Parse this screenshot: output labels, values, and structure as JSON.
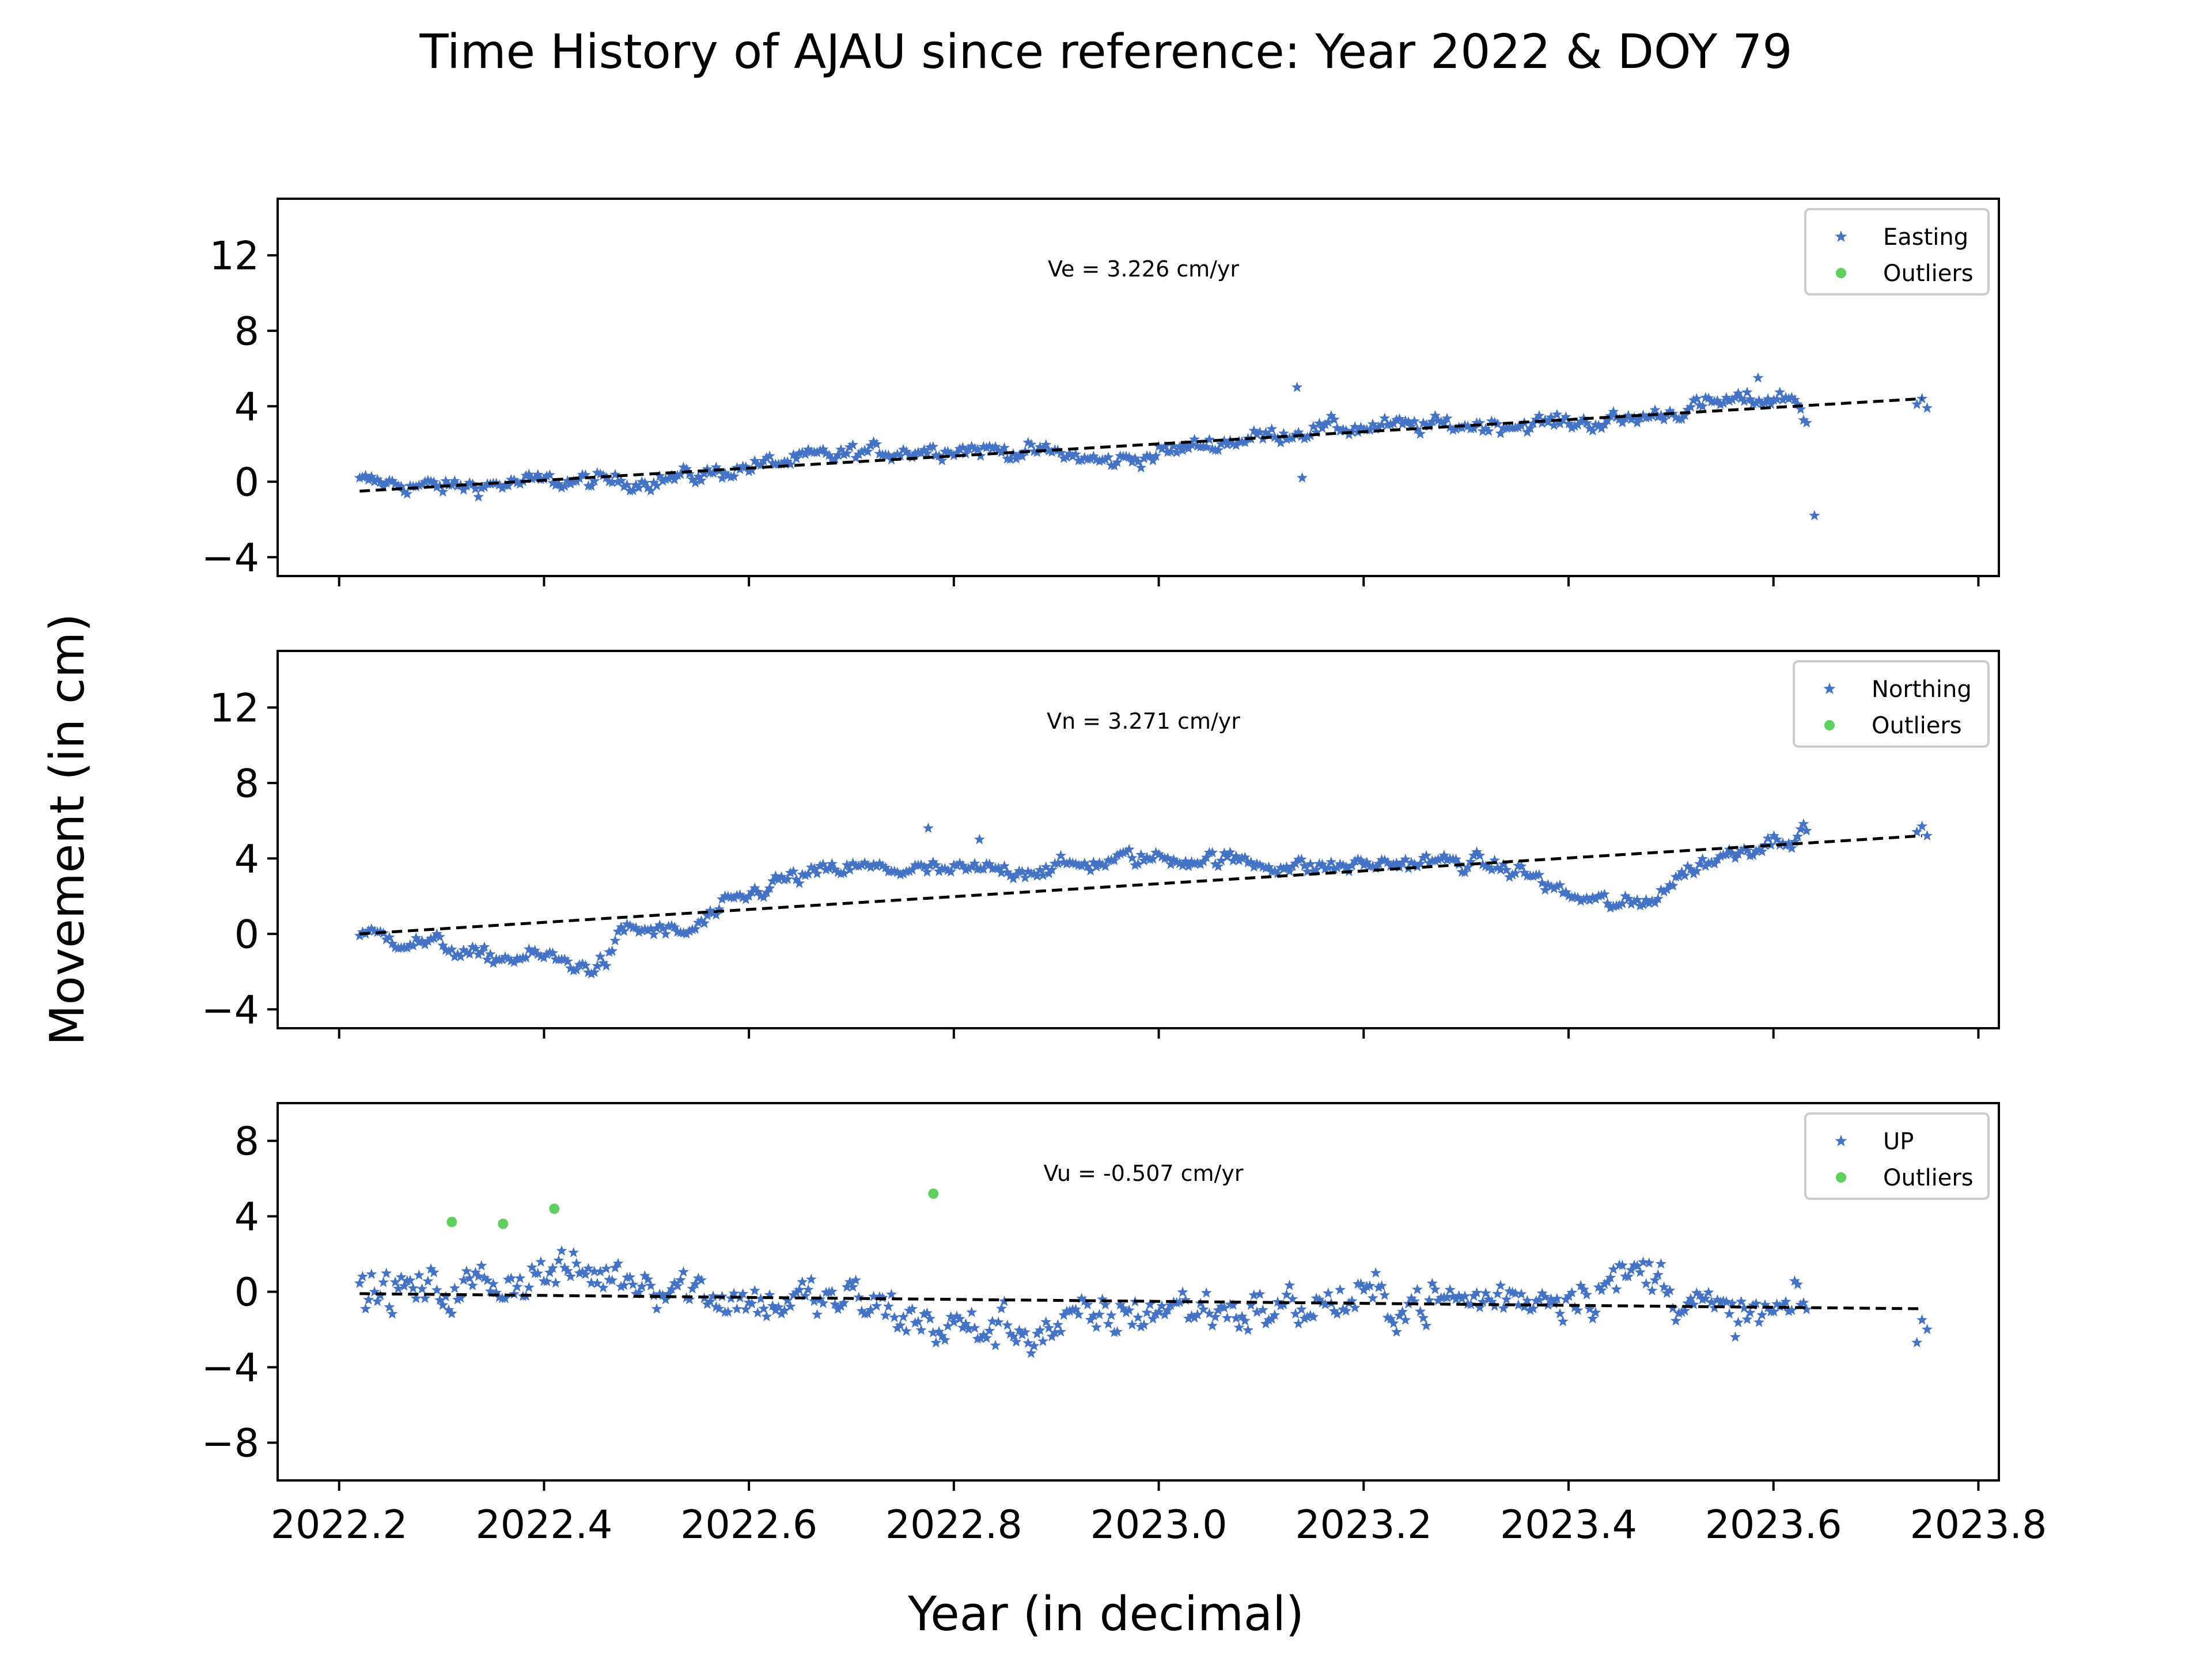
{
  "figure": {
    "title": "Time History of AJAU since reference: Year 2022 & DOY 79",
    "xlabel": "Year (in decimal)",
    "ylabel": "Movement (in cm)"
  },
  "chart_data": [
    {
      "type": "scatter",
      "panel": "easting",
      "xlim": [
        2022.14,
        2023.82
      ],
      "ylim": [
        -5,
        15
      ],
      "x_ticks": [
        "2022.2",
        "2022.4",
        "2022.6",
        "2022.8",
        "2023.0",
        "2023.2",
        "2023.4",
        "2023.6",
        "2023.8"
      ],
      "x_tick_labels_shown": false,
      "y_ticks": [
        "−4",
        "0",
        "4",
        "8",
        "12"
      ],
      "velocity_label": "Ve =  3.226 cm/yr",
      "legend_position": "upper right",
      "series": [
        {
          "name": "Easting",
          "color": "#4472c4",
          "marker": "star",
          "anchors": [
            [
              2022.22,
              0.0
            ],
            [
              2022.3,
              -0.3
            ],
            [
              2022.4,
              0.0
            ],
            [
              2022.48,
              0.0
            ],
            [
              2022.55,
              0.3
            ],
            [
              2022.6,
              0.8
            ],
            [
              2022.7,
              1.5
            ],
            [
              2022.8,
              1.8
            ],
            [
              2022.9,
              1.5
            ],
            [
              2022.95,
              1.0
            ],
            [
              2023.05,
              2.0
            ],
            [
              2023.15,
              2.8
            ],
            [
              2023.3,
              3.0
            ],
            [
              2023.45,
              3.2
            ],
            [
              2023.55,
              4.2
            ],
            [
              2023.62,
              4.5
            ],
            [
              2023.635,
              3.0
            ]
          ]
        },
        {
          "name": "Outliers",
          "color": "#5fcf5f",
          "marker": "circle",
          "points": []
        }
      ],
      "trend": {
        "x": [
          2022.22,
          2023.745
        ],
        "y": [
          -0.5,
          4.4
        ],
        "style": "dashed",
        "color": "#000000"
      }
    },
    {
      "type": "scatter",
      "panel": "northing",
      "xlim": [
        2022.14,
        2023.82
      ],
      "ylim": [
        -5,
        15
      ],
      "x_ticks": [
        "2022.2",
        "2022.4",
        "2022.6",
        "2022.8",
        "2023.0",
        "2023.2",
        "2023.4",
        "2023.6",
        "2023.8"
      ],
      "x_tick_labels_shown": false,
      "y_ticks": [
        "−4",
        "0",
        "4",
        "8",
        "12"
      ],
      "velocity_label": "Vn =  3.271 cm/yr",
      "legend_position": "upper right",
      "series": [
        {
          "name": "Northing",
          "color": "#4472c4",
          "marker": "star",
          "anchors": [
            [
              2022.22,
              0.0
            ],
            [
              2022.3,
              -0.6
            ],
            [
              2022.34,
              -1.3
            ],
            [
              2022.4,
              -1.2
            ],
            [
              2022.44,
              -1.8
            ],
            [
              2022.46,
              -1.5
            ],
            [
              2022.48,
              0.3
            ],
            [
              2022.54,
              0.0
            ],
            [
              2022.58,
              1.5
            ],
            [
              2022.63,
              2.8
            ],
            [
              2022.7,
              3.5
            ],
            [
              2022.8,
              3.3
            ],
            [
              2022.9,
              3.5
            ],
            [
              2022.97,
              4.0
            ],
            [
              2023.05,
              4.0
            ],
            [
              2023.15,
              3.5
            ],
            [
              2023.25,
              3.8
            ],
            [
              2023.3,
              3.8
            ],
            [
              2023.36,
              3.2
            ],
            [
              2023.4,
              2.0
            ],
            [
              2023.45,
              1.5
            ],
            [
              2023.47,
              1.5
            ],
            [
              2023.52,
              3.5
            ],
            [
              2023.57,
              4.5
            ],
            [
              2023.635,
              5.5
            ]
          ]
        },
        {
          "name": "Outliers",
          "color": "#5fcf5f",
          "marker": "circle",
          "points": []
        }
      ],
      "trend": {
        "x": [
          2022.22,
          2023.745
        ],
        "y": [
          0.0,
          5.2
        ],
        "style": "dashed",
        "color": "#000000"
      }
    },
    {
      "type": "scatter",
      "panel": "up",
      "xlim": [
        2022.14,
        2023.82
      ],
      "ylim": [
        -10,
        10
      ],
      "x_ticks": [
        "2022.2",
        "2022.4",
        "2022.6",
        "2022.8",
        "2023.0",
        "2023.2",
        "2023.4",
        "2023.6",
        "2023.8"
      ],
      "x_tick_labels_shown": true,
      "y_ticks": [
        "−8",
        "−4",
        "0",
        "4",
        "8"
      ],
      "velocity_label": "Vu = -0.507 cm/yr",
      "legend_position": "upper right",
      "series": [
        {
          "name": "UP",
          "color": "#4472c4",
          "marker": "star",
          "anchors": [
            [
              2022.22,
              0.0
            ],
            [
              2022.3,
              0.0
            ],
            [
              2022.4,
              1.0
            ],
            [
              2022.5,
              0.8
            ],
            [
              2022.6,
              -0.5
            ],
            [
              2022.7,
              -0.5
            ],
            [
              2022.8,
              -2.0
            ],
            [
              2022.9,
              -2.0
            ],
            [
              2023.0,
              -0.8
            ],
            [
              2023.1,
              -1.0
            ],
            [
              2023.2,
              -0.5
            ],
            [
              2023.3,
              -0.5
            ],
            [
              2023.4,
              0.0
            ],
            [
              2023.48,
              1.0
            ],
            [
              2023.55,
              -1.5
            ],
            [
              2023.635,
              -1.0
            ]
          ]
        },
        {
          "name": "Outliers",
          "color": "#5fcf5f",
          "marker": "circle",
          "points": [
            [
              2022.31,
              3.7
            ],
            [
              2022.36,
              3.6
            ],
            [
              2022.41,
              4.4
            ],
            [
              2022.78,
              5.2
            ]
          ]
        }
      ],
      "extra_points": [
        [
          2023.74,
          -2.7
        ],
        [
          2023.745,
          -1.5
        ],
        [
          2023.75,
          -2.0
        ]
      ],
      "trend": {
        "x": [
          2022.22,
          2023.745
        ],
        "y": [
          -0.1,
          -0.9
        ],
        "style": "dashed",
        "color": "#000000"
      }
    }
  ]
}
